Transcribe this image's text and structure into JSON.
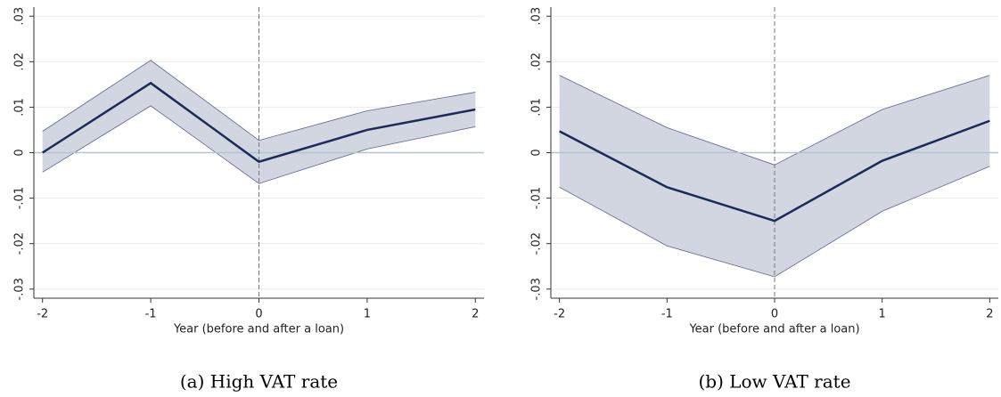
{
  "chart_data": [
    {
      "type": "line",
      "caption": "(a) High VAT rate",
      "xlabel": "Year (before and after a loan)",
      "x": [
        -2,
        -1,
        0,
        1,
        2
      ],
      "series": [
        {
          "color": "#1c2a57",
          "band_color": "#d2d6e0",
          "values": [
            0.0,
            0.0153,
            -0.002,
            0.005,
            0.0095
          ],
          "lower": [
            -0.0043,
            0.0103,
            -0.0068,
            0.0008,
            0.0057
          ],
          "upper": [
            0.0047,
            0.0203,
            0.0027,
            0.0092,
            0.0133
          ]
        }
      ],
      "xlim": [
        -2.08,
        2.08
      ],
      "xticks": [
        -2,
        -1,
        0,
        1,
        2
      ],
      "ylim": [
        -0.032,
        0.032
      ],
      "yticks": [
        {
          "value": 0.03,
          "label": ".03"
        },
        {
          "value": 0.02,
          "label": ".02"
        },
        {
          "value": 0.01,
          "label": ".01"
        },
        0,
        {
          "value": -0.01,
          "label": "-.01"
        },
        {
          "value": -0.02,
          "label": "-.02"
        },
        {
          "value": -0.03,
          "label": "-.03"
        }
      ],
      "grid": true,
      "hline": 0,
      "vline": 0
    },
    {
      "type": "line",
      "caption": "(b) Low VAT rate",
      "xlabel": "Year (before and after a loan)",
      "x": [
        -2,
        -1,
        0,
        1,
        2
      ],
      "series": [
        {
          "color": "#1c2a57",
          "band_color": "#d2d6e0",
          "values": [
            0.0047,
            -0.0076,
            -0.015,
            -0.0018,
            0.007
          ],
          "lower": [
            -0.0076,
            -0.0205,
            -0.0273,
            -0.0129,
            -0.003
          ],
          "upper": [
            0.017,
            0.0055,
            -0.0027,
            0.0095,
            0.017
          ]
        }
      ],
      "xlim": [
        -2.08,
        2.08
      ],
      "xticks": [
        -2,
        -1,
        0,
        1,
        2
      ],
      "ylim": [
        -0.032,
        0.032
      ],
      "yticks": [
        {
          "value": 0.03,
          "label": ".03"
        },
        {
          "value": 0.02,
          "label": ".02"
        },
        {
          "value": 0.01,
          "label": ".01"
        },
        0,
        {
          "value": -0.01,
          "label": "-.01"
        },
        {
          "value": -0.02,
          "label": "-.02"
        },
        {
          "value": -0.03,
          "label": "-.03"
        }
      ],
      "grid": true,
      "hline": 0,
      "vline": 0
    }
  ]
}
